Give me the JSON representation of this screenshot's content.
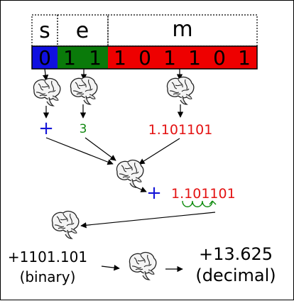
{
  "header": {
    "sign_letter": "s",
    "exponent_letter": "e",
    "mantissa_letter": "m"
  },
  "bits": {
    "sign": [
      "0"
    ],
    "exponent": [
      "1",
      "1"
    ],
    "mantissa": [
      "1",
      "0",
      "1",
      "1",
      "0",
      "1"
    ]
  },
  "decoded": {
    "sign_symbol": "+",
    "exponent_value": "3",
    "mantissa_value": "1.101101"
  },
  "combined": {
    "sign_symbol": "+",
    "value_prefix": "1.",
    "value_suffix": "101101"
  },
  "result": {
    "binary_value": "+1101.101",
    "binary_caption": "(binary)",
    "decimal_value": "+13.625",
    "decimal_caption": "(decimal)"
  },
  "colors": {
    "sign": "#1010e0",
    "exponent": "#0a7a0a",
    "mantissa": "#ee0000",
    "sign_text": "#1515d8",
    "exponent_text": "#118811",
    "mantissa_text": "#e41212"
  },
  "icons": {
    "brain": "brain-icon",
    "arrow": "arrow-icon"
  }
}
